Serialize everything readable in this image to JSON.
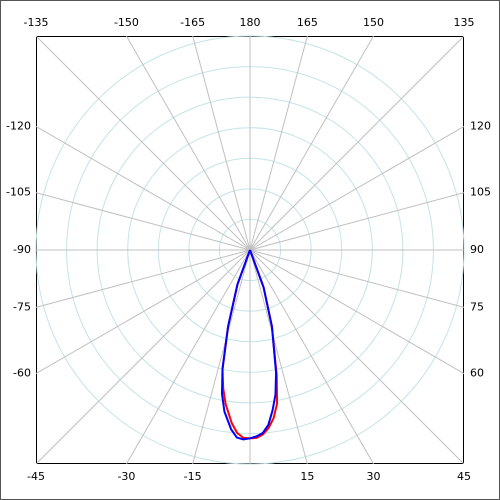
{
  "chart_data": {
    "type": "polar",
    "xticks": [
      -165,
      -150,
      -135,
      -120,
      -105,
      -90,
      -75,
      -60,
      -45,
      -30,
      -15,
      {
        "value": 0,
        "label": null
      },
      15,
      30,
      45,
      60,
      75,
      90,
      105,
      120,
      135,
      150,
      165,
      180
    ],
    "rlim": [
      0,
      7
    ],
    "rgrid": [
      1,
      2,
      3,
      4,
      5,
      6,
      7
    ],
    "series": [
      {
        "color": "#ff0000",
        "x": [
          -25,
          -20,
          -16,
          -13,
          -11,
          -9,
          -6,
          -4,
          -2,
          0,
          2,
          4,
          6,
          8,
          10,
          12,
          16,
          20,
          25
        ],
        "values": [
          0,
          1.2,
          2.6,
          4.0,
          4.6,
          5.1,
          5.7,
          6.0,
          6.15,
          6.16,
          6.15,
          6.05,
          5.85,
          5.55,
          5.1,
          4.2,
          2.6,
          1.3,
          0
        ]
      },
      {
        "color": "#0000ff",
        "x": [
          -25,
          -20,
          -16,
          -13,
          -11,
          -9,
          -6,
          -4,
          -2,
          0,
          2,
          4,
          6,
          8,
          10,
          12,
          16,
          20,
          25
        ],
        "values": [
          0,
          1.2,
          2.6,
          4.0,
          4.8,
          5.35,
          5.9,
          6.15,
          6.2,
          6.16,
          6.1,
          6.0,
          5.75,
          5.3,
          4.8,
          4.1,
          2.6,
          1.3,
          0
        ]
      }
    ]
  }
}
